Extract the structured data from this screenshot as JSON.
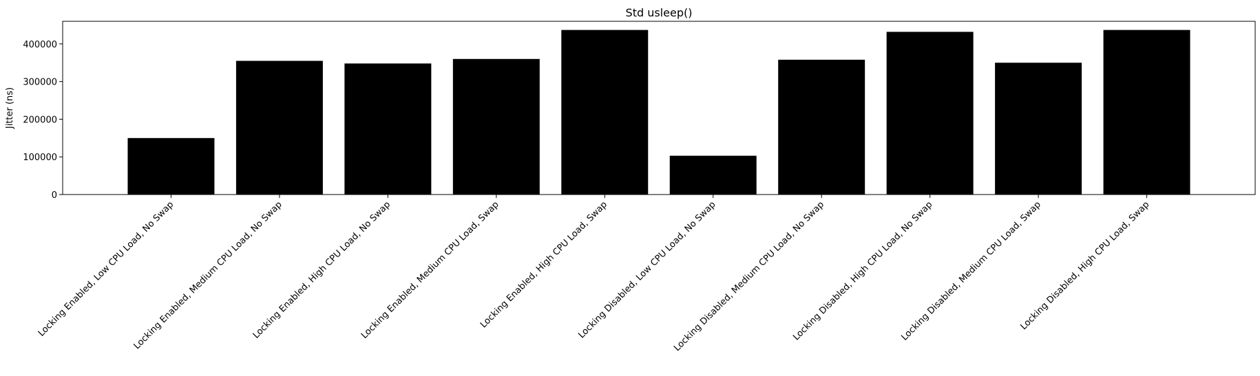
{
  "chart_data": {
    "type": "bar",
    "title": "Std usleep()",
    "xlabel": "",
    "ylabel": "Jitter (ns)",
    "ylim": [
      0,
      460000
    ],
    "yticks": [
      0,
      100000,
      200000,
      300000,
      400000
    ],
    "ytick_labels": [
      "0",
      "100000",
      "200000",
      "300000",
      "400000"
    ],
    "bar_color": "#000000",
    "grid": false,
    "legend": false,
    "categories": [
      "Locking Enabled, Low CPU Load, No Swap",
      "Locking Enabled, Medium CPU Load, No Swap",
      "Locking Enabled, High CPU Load, No Swap",
      "Locking Enabled, Medium CPU Load, Swap",
      "Locking Enabled, High CPU Load, Swap",
      "Locking Disabled, Low CPU Load, No Swap",
      "Locking Disabled, Medium CPU Load, No Swap",
      "Locking Disabled, High CPU Load, No Swap",
      "Locking Disabled, Medium CPU Load, Swap",
      "Locking Disabled, High CPU Load, Swap"
    ],
    "values": [
      150000,
      355000,
      348000,
      360000,
      437000,
      103000,
      358000,
      432000,
      350000,
      437000
    ]
  }
}
